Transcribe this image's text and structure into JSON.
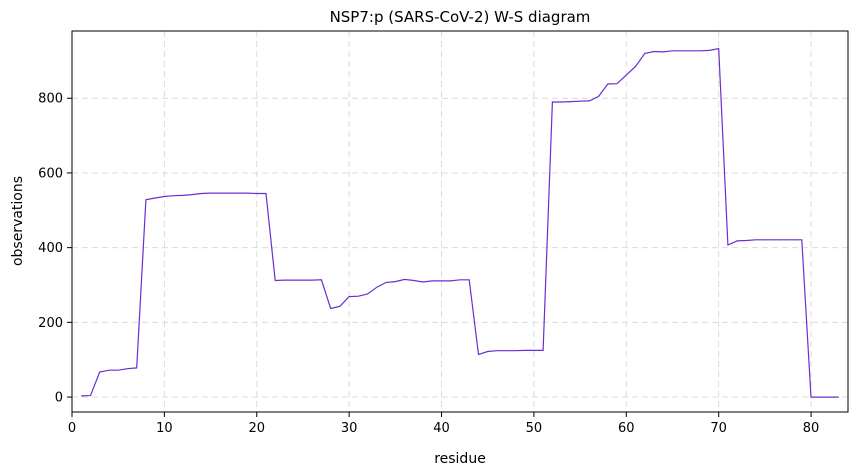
{
  "chart_data": {
    "type": "line",
    "title": "NSP7:p (SARS-CoV-2) W-S diagram",
    "xlabel": "residue",
    "ylabel": "observations",
    "xlim": [
      0,
      84
    ],
    "ylim": [
      -40,
      980
    ],
    "xticks": [
      0,
      10,
      20,
      30,
      40,
      50,
      60,
      70,
      80
    ],
    "yticks": [
      0,
      200,
      400,
      600,
      800
    ],
    "grid": true,
    "line_color": "#6a2fd0",
    "series": [
      {
        "x": [
          1,
          2,
          3,
          4,
          5,
          6,
          7,
          8,
          9,
          10,
          11,
          12,
          13,
          14,
          15,
          16,
          17,
          18,
          19,
          20,
          21,
          22,
          23,
          24,
          25,
          26,
          27,
          28,
          29,
          30,
          31,
          32,
          33,
          34,
          35,
          36,
          37,
          38,
          39,
          40,
          41,
          42,
          43,
          44,
          45,
          46,
          47,
          48,
          49,
          50,
          51,
          52,
          53,
          54,
          55,
          56,
          57,
          58,
          59,
          60,
          61,
          62,
          63,
          64,
          65,
          66,
          67,
          68,
          69,
          70,
          71,
          72,
          73,
          74,
          75,
          76,
          77,
          78,
          79,
          80,
          81,
          82,
          83
        ],
        "values": [
          3,
          4,
          67,
          72,
          72,
          76,
          78,
          528,
          533,
          537,
          539,
          540,
          542,
          545,
          546,
          546,
          546,
          546,
          546,
          545,
          545,
          312,
          313,
          313,
          313,
          313,
          314,
          237,
          243,
          269,
          270,
          276,
          294,
          307,
          309,
          315,
          312,
          308,
          311,
          311,
          311,
          314,
          314,
          114,
          122,
          124,
          124,
          124,
          125,
          125,
          125,
          790,
          790,
          791,
          792,
          793,
          805,
          838,
          839,
          862,
          885,
          920,
          925,
          924,
          927,
          927,
          927,
          927,
          928,
          933,
          407,
          418,
          419,
          421,
          421,
          421,
          421,
          421,
          421,
          0,
          0,
          0,
          0
        ]
      }
    ]
  }
}
